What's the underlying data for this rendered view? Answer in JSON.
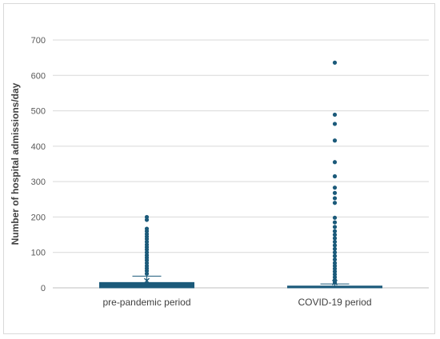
{
  "chart_data": {
    "type": "box",
    "title": "",
    "xlabel": "",
    "ylabel": "Number of hospital admissions/day",
    "ylim": [
      0,
      700
    ],
    "yticks": [
      0,
      100,
      200,
      300,
      400,
      500,
      600,
      700
    ],
    "grid": true,
    "legend": "none",
    "color": "#1b5a7a",
    "categories": [
      "pre-pandemic period",
      "COVID-19 period"
    ],
    "boxes": [
      {
        "category": "pre-pandemic period",
        "q1": 0,
        "median": 8,
        "q3": 15,
        "whisker_low": 0,
        "whisker_high": 33,
        "mean": 20,
        "outliers": [
          200,
          192,
          167,
          160,
          152,
          145,
          138,
          130,
          122,
          115,
          108,
          100,
          92,
          85,
          78,
          70,
          62,
          55,
          48,
          40
        ]
      },
      {
        "category": "COVID-19 period",
        "q1": 0,
        "median": 2,
        "q3": 5,
        "whisker_low": 0,
        "whisker_high": 11,
        "mean": 15,
        "outliers": [
          636,
          489,
          463,
          416,
          355,
          315,
          283,
          268,
          253,
          240,
          198,
          185,
          172,
          160,
          150,
          140,
          130,
          120,
          110,
          100,
          90,
          80,
          70,
          62,
          54,
          46,
          38,
          30,
          22,
          15
        ]
      }
    ]
  }
}
